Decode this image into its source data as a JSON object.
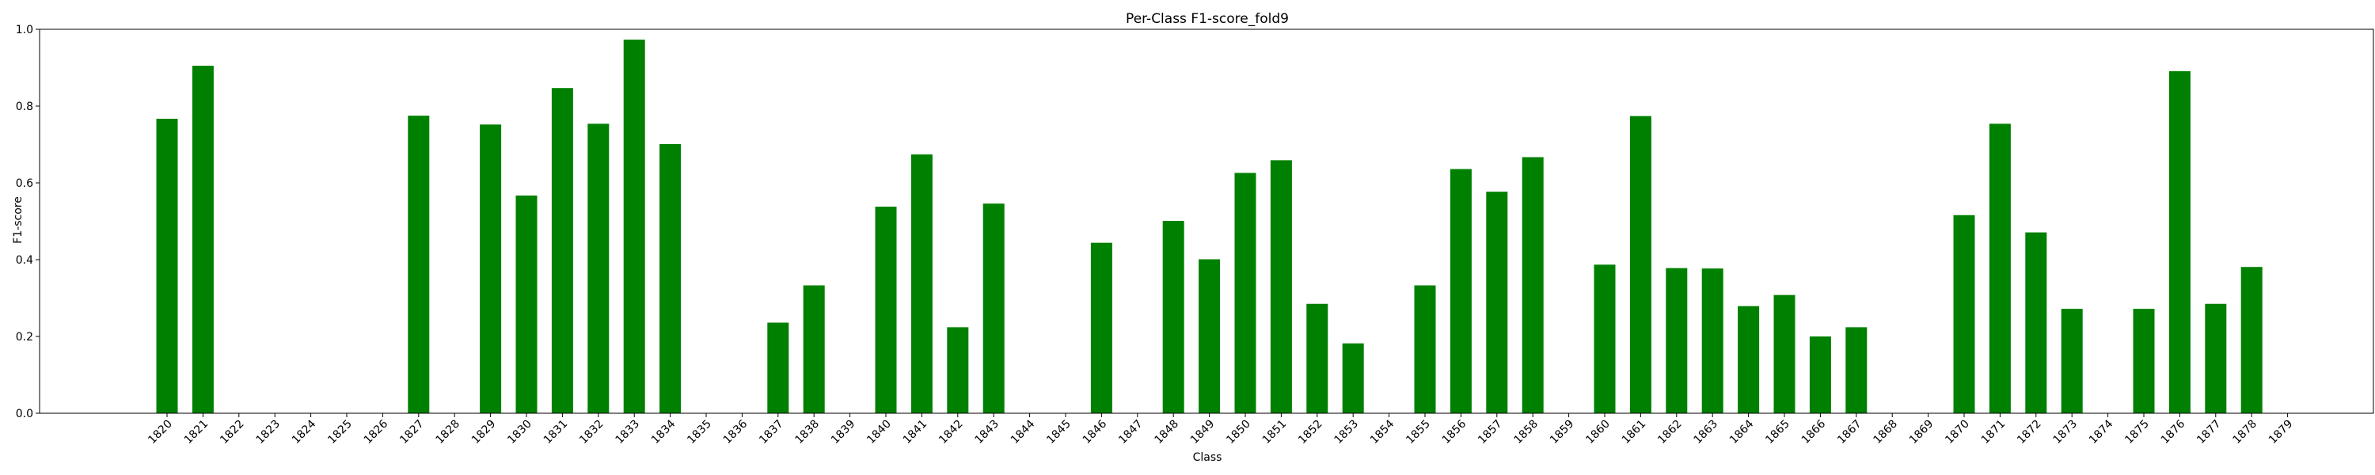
{
  "chart_data": {
    "type": "bar",
    "title": "Per-Class F1-score_fold9",
    "xlabel": "Class",
    "ylabel": "F1-score",
    "ylim": [
      0,
      1.0
    ],
    "yticks": [
      "0.0",
      "0.2",
      "0.4",
      "0.6",
      "0.8",
      "1.0"
    ],
    "bar_color": "#008000",
    "grid": false,
    "categories": [
      "1820",
      "1821",
      "1822",
      "1823",
      "1824",
      "1825",
      "1826",
      "1827",
      "1828",
      "1829",
      "1830",
      "1831",
      "1832",
      "1833",
      "1834",
      "1835",
      "1836",
      "1837",
      "1838",
      "1839",
      "1840",
      "1841",
      "1842",
      "1843",
      "1844",
      "1845",
      "1846",
      "1847",
      "1848",
      "1849",
      "1850",
      "1851",
      "1852",
      "1853",
      "1854",
      "1855",
      "1856",
      "1857",
      "1858",
      "1859",
      "1860",
      "1861",
      "1862",
      "1863",
      "1864",
      "1865",
      "1866",
      "1867",
      "1868",
      "1869",
      "1870",
      "1871",
      "1872",
      "1873",
      "1874",
      "1875",
      "1876",
      "1877",
      "1878",
      "1879"
    ],
    "values": [
      0.767,
      0.905,
      0,
      0,
      0,
      0,
      0,
      0.775,
      0,
      0.752,
      0.567,
      0.847,
      0.754,
      0.973,
      0.701,
      0,
      0,
      0.236,
      0.333,
      0,
      0.538,
      0.674,
      0.224,
      0.546,
      0,
      0,
      0.444,
      0,
      0.501,
      0.401,
      0.626,
      0.659,
      0.285,
      0.182,
      0,
      0.333,
      0.636,
      0.577,
      0.667,
      0,
      0.387,
      0.774,
      0.378,
      0.377,
      0.279,
      0.308,
      0.2,
      0.224,
      0,
      0,
      0.516,
      0.754,
      0.471,
      0.272,
      0,
      0.272,
      0.891,
      0.285,
      0.381,
      0
    ]
  }
}
